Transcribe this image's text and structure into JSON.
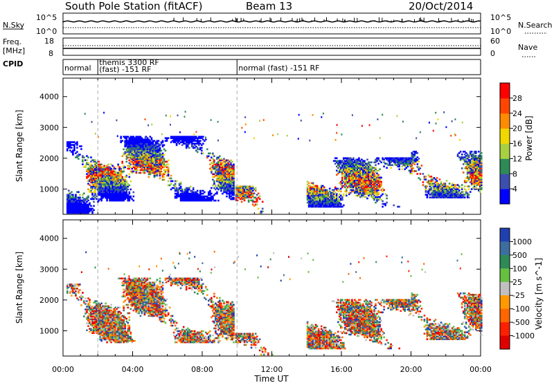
{
  "header": {
    "station": "South Pole Station (fitACF)",
    "beam": "Beam 13",
    "date": "20/Oct/2014"
  },
  "summary_panels": {
    "nsky_label": "N.Sky",
    "nsky_ticks": [
      "10^5",
      "10^0"
    ],
    "nsearch_label": "N.Search",
    "nsearch_ticks": [
      "10^5",
      "10^0"
    ],
    "freq_label": [
      "Freq.",
      "[MHz]"
    ],
    "freq_ticks": [
      "18",
      "8"
    ],
    "nave_label": "Nave",
    "nave_ticks": [
      "60",
      "0"
    ],
    "cpid_label": "CPID",
    "cpid_segments": [
      {
        "start_h": 0.0,
        "end_h": 2.0,
        "lines": [
          "normal"
        ]
      },
      {
        "start_h": 2.0,
        "end_h": 10.0,
        "lines": [
          "themis 3300 RF",
          "(fast) -151 RF"
        ]
      },
      {
        "start_h": 10.0,
        "end_h": 24.0,
        "lines": [
          "normal (fast) -151 RF"
        ]
      }
    ]
  },
  "chart_data": [
    {
      "type": "heatmap",
      "parameter": "Power",
      "ylabel": "Slant Range [km]",
      "ylim": [
        180,
        4600
      ],
      "xlim_hours": [
        0,
        24
      ],
      "yticks": [
        "1000",
        "2000",
        "3000",
        "4000"
      ],
      "colorbar_label": "Power [dB]",
      "colorbar_ticks": [
        "4",
        "8",
        "12",
        "16",
        "20",
        "24",
        "28"
      ],
      "colorbar_colors": [
        "#0000ff",
        "#3c4fae",
        "#2e8b57",
        "#a8d040",
        "#f0d800",
        "#ff8c00",
        "#ff4500",
        "#ff0000"
      ],
      "scatter_regions": [
        {
          "start_h": 0.2,
          "end_h": 2.0,
          "range_low_km": 200,
          "range_high_km": 2500
        },
        {
          "start_h": 2.0,
          "end_h": 9.8,
          "range_low_km": 600,
          "range_high_km": 2700
        },
        {
          "start_h": 9.9,
          "end_h": 11.5,
          "range_low_km": 200,
          "range_high_km": 1100
        },
        {
          "start_h": 14.0,
          "end_h": 20.0,
          "range_low_km": 400,
          "range_high_km": 2000
        },
        {
          "start_h": 20.0,
          "end_h": 24.0,
          "range_low_km": 700,
          "range_high_km": 2200
        }
      ]
    },
    {
      "type": "heatmap",
      "parameter": "Velocity",
      "ylabel": "Slant Range [km]",
      "ylim": [
        180,
        4600
      ],
      "xlim_hours": [
        0,
        24
      ],
      "yticks": [
        "1000",
        "2000",
        "3000",
        "4000"
      ],
      "xticks": [
        "00:00",
        "04:00",
        "08:00",
        "12:00",
        "16:00",
        "20:00",
        "00:00"
      ],
      "xlabel": "Time UT",
      "colorbar_label": "Velocity [m s^-1]",
      "colorbar_ticks": [
        "1000",
        "500",
        "100",
        "25",
        "-25",
        "-100",
        "-500",
        "-1000"
      ],
      "colorbar_colors": [
        "#2040b0",
        "#3c6fa0",
        "#2e8b57",
        "#66c040",
        "#c0c0c0",
        "#ff9900",
        "#ff6600",
        "#ff2000",
        "#e00000"
      ],
      "scatter_regions": [
        {
          "start_h": 0.2,
          "end_h": 2.0,
          "range_low_km": 900,
          "range_high_km": 2500
        },
        {
          "start_h": 2.0,
          "end_h": 9.8,
          "range_low_km": 600,
          "range_high_km": 2700
        },
        {
          "start_h": 9.9,
          "end_h": 12.0,
          "range_low_km": 200,
          "range_high_km": 900
        },
        {
          "start_h": 14.0,
          "end_h": 20.0,
          "range_low_km": 400,
          "range_high_km": 2000
        },
        {
          "start_h": 20.0,
          "end_h": 24.0,
          "range_low_km": 700,
          "range_high_km": 2200
        }
      ]
    }
  ]
}
